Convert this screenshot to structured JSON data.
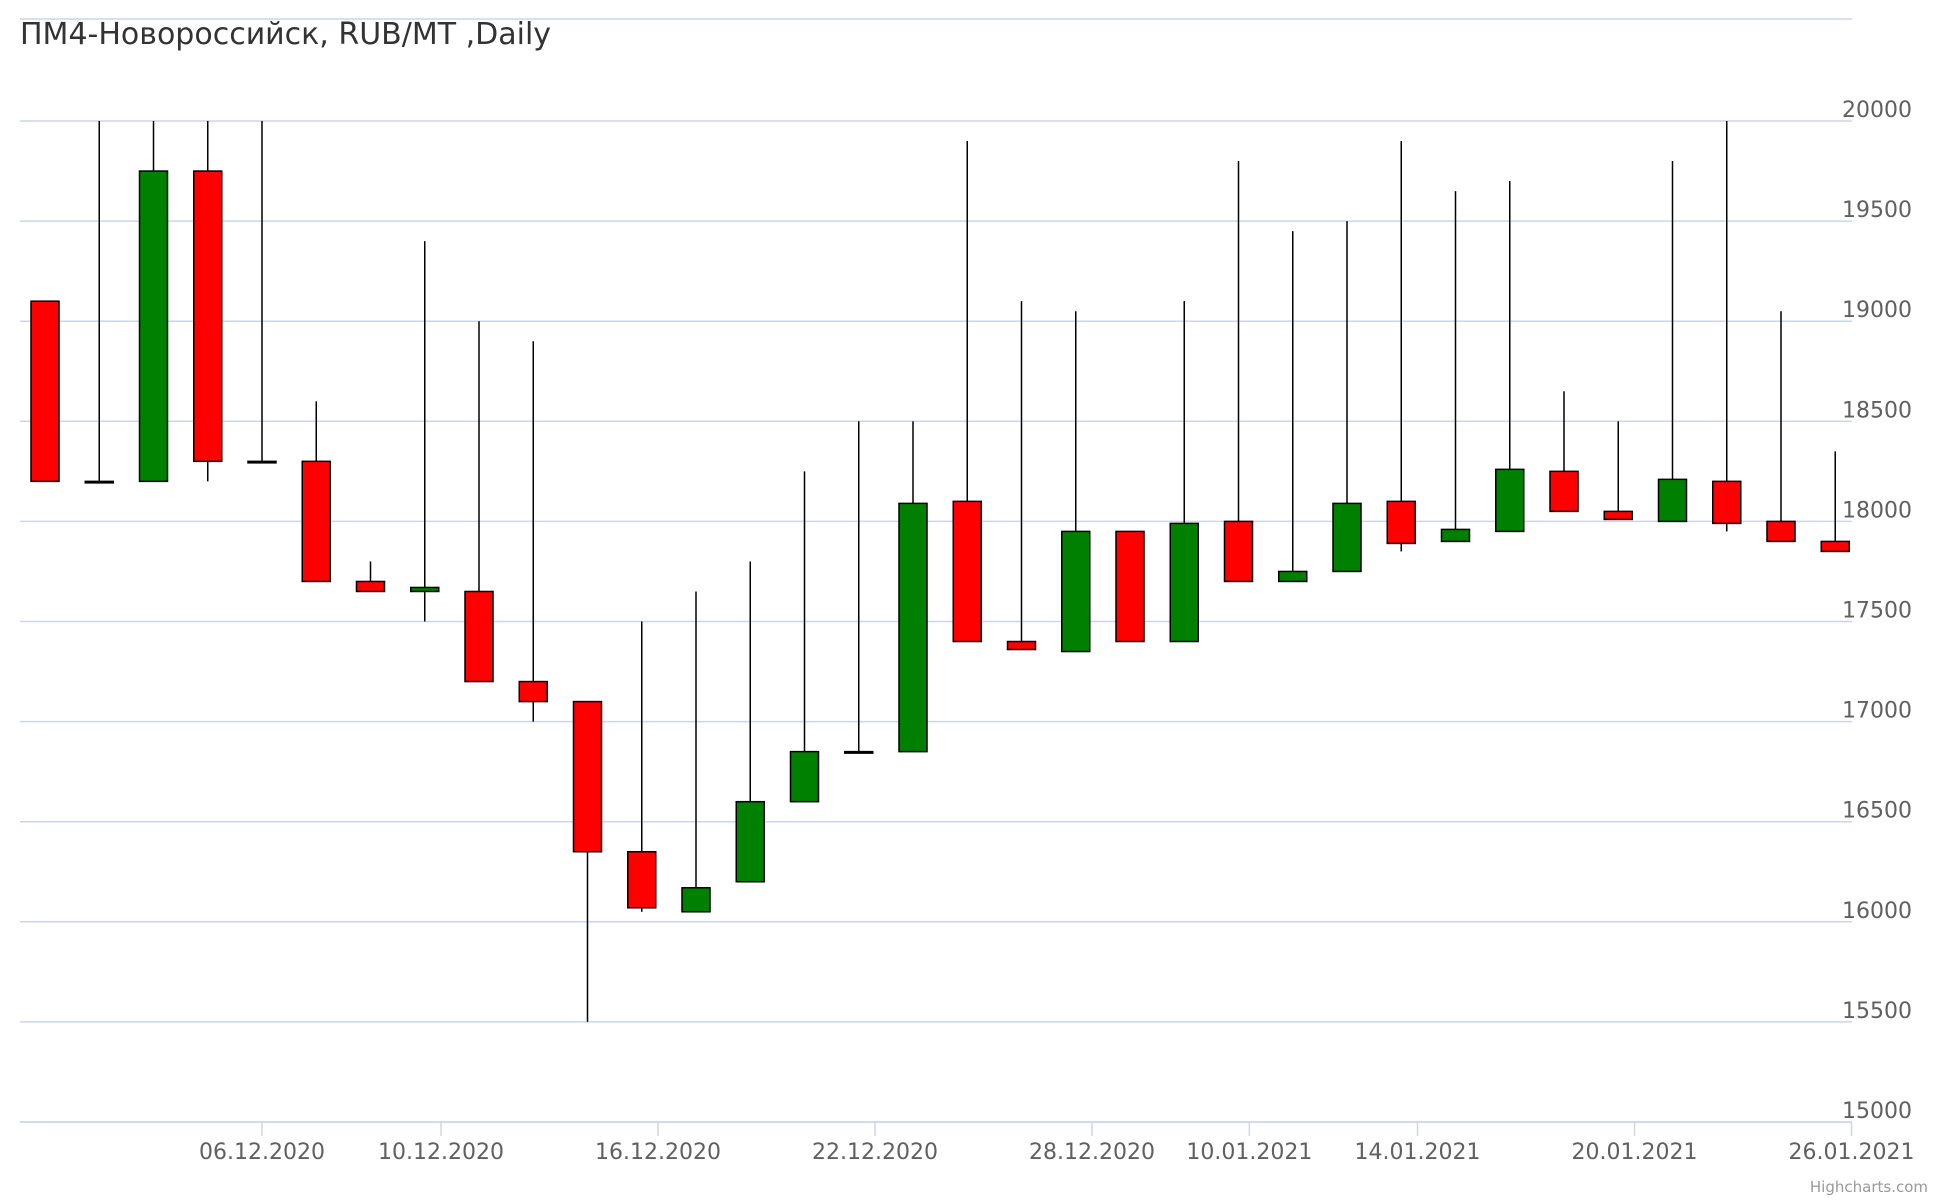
{
  "chart_data": {
    "type": "candlestick",
    "title": "ПМ4-Новороссийск, RUB/MT ,Daily",
    "credits": "Highcharts.com",
    "xlabel": "",
    "ylabel": "",
    "ylim": [
      15000,
      20000
    ],
    "y_ticks": [
      15000,
      15500,
      16000,
      16500,
      17000,
      17500,
      18000,
      18500,
      19000,
      19500,
      20000
    ],
    "y_axis_side": "right",
    "grid": true,
    "legend": "none",
    "up_color": "#008000",
    "down_color": "#ff0000",
    "wick_color": "#000000",
    "x_tick_labels": [
      {
        "label": "06.12.2020",
        "index": 4
      },
      {
        "label": "10.12.2020",
        "index": 7.3
      },
      {
        "label": "16.12.2020",
        "index": 11.3
      },
      {
        "label": "22.12.2020",
        "index": 15.3
      },
      {
        "label": "28.12.2020",
        "index": 19.3
      },
      {
        "label": "10.01.2021",
        "index": 22.2
      },
      {
        "label": "14.01.2021",
        "index": 25.3
      },
      {
        "label": "20.01.2021",
        "index": 29.3
      },
      {
        "label": "26.01.2021",
        "index": 33.3
      }
    ],
    "candles": [
      {
        "open": 19100,
        "high": 19100,
        "low": 18200,
        "close": 18200
      },
      {
        "open": 18200,
        "high": 20000,
        "low": 18200,
        "close": 18200
      },
      {
        "open": 18200,
        "high": 20000,
        "low": 18200,
        "close": 19750
      },
      {
        "open": 19750,
        "high": 20000,
        "low": 18200,
        "close": 18300
      },
      {
        "open": 18300,
        "high": 20000,
        "low": 18300,
        "close": 18300
      },
      {
        "open": 18300,
        "high": 18600,
        "low": 17700,
        "close": 17700
      },
      {
        "open": 17700,
        "high": 17800,
        "low": 17650,
        "close": 17650
      },
      {
        "open": 17650,
        "high": 19400,
        "low": 17500,
        "close": 17670
      },
      {
        "open": 17650,
        "high": 19000,
        "low": 17200,
        "close": 17200
      },
      {
        "open": 17200,
        "high": 18900,
        "low": 17000,
        "close": 17100
      },
      {
        "open": 17100,
        "high": 17100,
        "low": 15500,
        "close": 16350
      },
      {
        "open": 16350,
        "high": 17500,
        "low": 16050,
        "close": 16070
      },
      {
        "open": 16050,
        "high": 17650,
        "low": 16050,
        "close": 16170
      },
      {
        "open": 16200,
        "high": 17800,
        "low": 16200,
        "close": 16600
      },
      {
        "open": 16600,
        "high": 18250,
        "low": 16600,
        "close": 16850
      },
      {
        "open": 16850,
        "high": 18500,
        "low": 16850,
        "close": 16850
      },
      {
        "open": 16850,
        "high": 18500,
        "low": 16850,
        "close": 18090
      },
      {
        "open": 18100,
        "high": 19900,
        "low": 17400,
        "close": 17400
      },
      {
        "open": 17400,
        "high": 19100,
        "low": 17360,
        "close": 17360
      },
      {
        "open": 17350,
        "high": 19050,
        "low": 17350,
        "close": 17950
      },
      {
        "open": 17950,
        "high": 17950,
        "low": 17400,
        "close": 17400
      },
      {
        "open": 17400,
        "high": 19100,
        "low": 17400,
        "close": 17990
      },
      {
        "open": 18000,
        "high": 19800,
        "low": 17700,
        "close": 17700
      },
      {
        "open": 17700,
        "high": 19450,
        "low": 17700,
        "close": 17750
      },
      {
        "open": 17750,
        "high": 19500,
        "low": 17750,
        "close": 18090
      },
      {
        "open": 18100,
        "high": 19900,
        "low": 17850,
        "close": 17890
      },
      {
        "open": 17900,
        "high": 19650,
        "low": 17900,
        "close": 17960
      },
      {
        "open": 17950,
        "high": 19700,
        "low": 17950,
        "close": 18260
      },
      {
        "open": 18250,
        "high": 18650,
        "low": 18050,
        "close": 18050
      },
      {
        "open": 18050,
        "high": 18500,
        "low": 18010,
        "close": 18010
      },
      {
        "open": 18000,
        "high": 19800,
        "low": 18000,
        "close": 18210
      },
      {
        "open": 18200,
        "high": 20000,
        "low": 17950,
        "close": 17990
      },
      {
        "open": 18000,
        "high": 19050,
        "low": 17900,
        "close": 17900
      },
      {
        "open": 17900,
        "high": 18350,
        "low": 17850,
        "close": 17850
      }
    ]
  }
}
